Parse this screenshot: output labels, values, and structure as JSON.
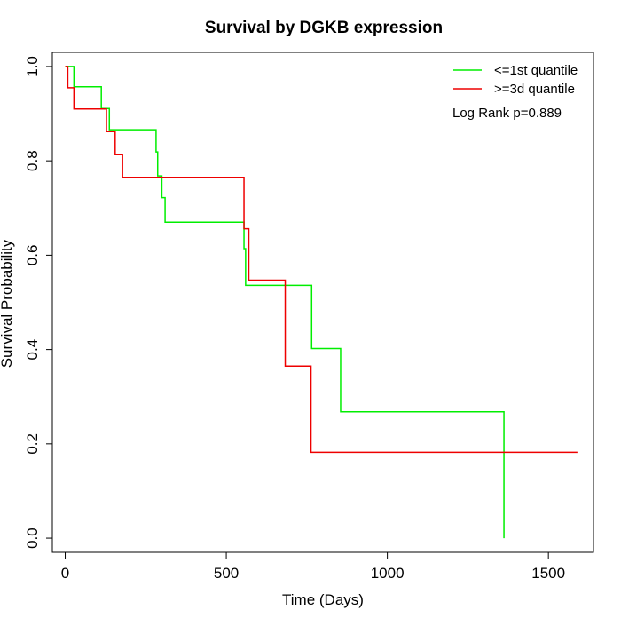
{
  "chart_data": {
    "type": "line",
    "title": "Survival by DGKB expression",
    "xlabel": "Time (Days)",
    "ylabel": "Survival Probability",
    "xlim": [
      -40,
      1640
    ],
    "ylim": [
      -0.03,
      1.03
    ],
    "x_ticks": [
      0,
      500,
      1000,
      1500
    ],
    "x_tick_labels": [
      "0",
      "500",
      "1000",
      "1500"
    ],
    "y_ticks": [
      0.0,
      0.2,
      0.4,
      0.6,
      0.8,
      1.0
    ],
    "y_tick_labels": [
      "0.0",
      "0.2",
      "0.4",
      "0.6",
      "0.8",
      "1.0"
    ],
    "grid": false,
    "legend_position": "top-right",
    "annotation": "Log Rank p=0.889",
    "series": [
      {
        "name": "<=1st quantile",
        "color": "#00ee00",
        "step": true,
        "x": [
          0,
          27,
          112,
          137,
          282,
          287,
          300,
          310,
          350,
          555,
          560,
          765,
          855,
          1362,
          1362
        ],
        "y": [
          1.0,
          0.957,
          0.911,
          0.866,
          0.819,
          0.768,
          0.722,
          0.67,
          0.67,
          0.614,
          0.536,
          0.402,
          0.268,
          0.268,
          0.0
        ]
      },
      {
        "name": ">=3d quantile",
        "color": "#ee0000",
        "step": true,
        "x": [
          0,
          8,
          27,
          128,
          145,
          155,
          178,
          555,
          570,
          575,
          683,
          763,
          1590
        ],
        "y": [
          1.0,
          0.955,
          0.91,
          0.862,
          0.862,
          0.814,
          0.765,
          0.656,
          0.547,
          0.547,
          0.365,
          0.182,
          0.182
        ]
      }
    ]
  }
}
